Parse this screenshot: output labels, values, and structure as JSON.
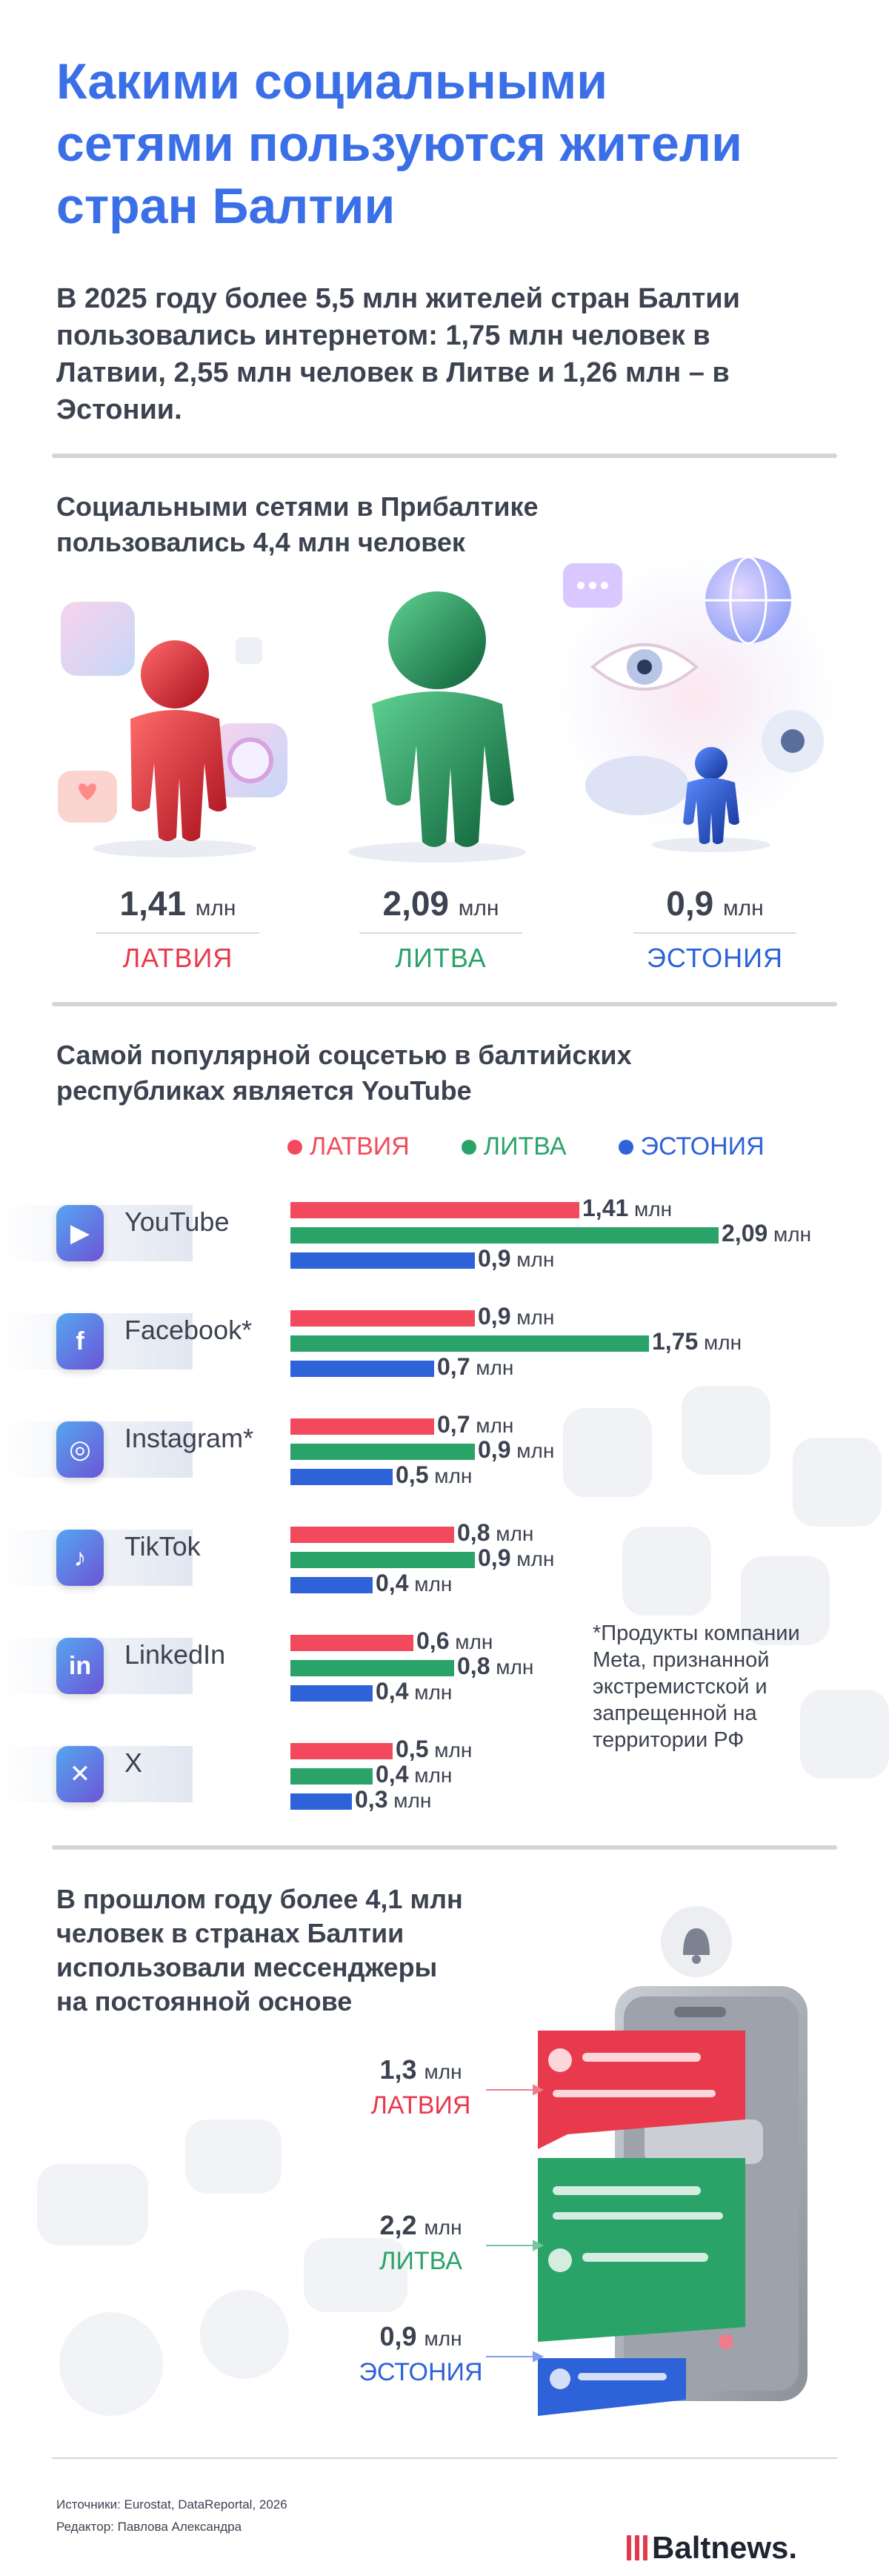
{
  "title": "Какими социальными сетями пользуются жители стран Балтии",
  "intro": "В 2025 году более 5,5 млн жителей стран Балтии пользовались интернетом: 1,75 млн человек в Латвии, 2,55 млн человек в Литве и 1,26 млн – в Эстонии.",
  "section_users": {
    "heading": "Социальными сетями в Прибалтике пользовались 4,4 млн человек",
    "unit": "млн",
    "countries": [
      {
        "value": "1,41",
        "name": "ЛАТВИЯ",
        "color": "#e83a4c"
      },
      {
        "value": "2,09",
        "name": "ЛИТВА",
        "color": "#2aa368"
      },
      {
        "value": "0,9",
        "name": "ЭСТОНИЯ",
        "color": "#2e62d9"
      }
    ]
  },
  "section_platforms": {
    "heading": "Самой популярной соцсетью в балтийских республиках является YouTube",
    "legend": [
      {
        "label": "ЛАТВИЯ",
        "color": "#f24a5c"
      },
      {
        "label": "ЛИТВА",
        "color": "#2aa368"
      },
      {
        "label": "ЭСТОНИЯ",
        "color": "#2e62d9"
      }
    ],
    "unit": "млн",
    "footnote": "*Продукты компании Meta, признанной экстремистской и запрещенной на территории РФ"
  },
  "chart_data": {
    "type": "bar",
    "orientation": "horizontal",
    "categories": [
      "YouTube",
      "Facebook*",
      "Instagram*",
      "TikTok",
      "LinkedIn",
      "X"
    ],
    "icons": [
      "youtube-icon",
      "facebook-icon",
      "instagram-icon",
      "tiktok-icon",
      "linkedin-icon",
      "x-icon"
    ],
    "series": [
      {
        "name": "ЛАТВИЯ",
        "color": "#f24a5c",
        "values": [
          1.41,
          0.9,
          0.7,
          0.8,
          0.6,
          0.5
        ],
        "labels": [
          "1,41",
          "0,9",
          "0,7",
          "0,8",
          "0,6",
          "0,5"
        ]
      },
      {
        "name": "ЛИТВА",
        "color": "#2aa368",
        "values": [
          2.09,
          1.75,
          0.9,
          0.9,
          0.8,
          0.4
        ],
        "labels": [
          "2,09",
          "1,75",
          "0,9",
          "0,9",
          "0,8",
          "0,4"
        ]
      },
      {
        "name": "ЭСТОНИЯ",
        "color": "#2e62d9",
        "values": [
          0.9,
          0.7,
          0.5,
          0.4,
          0.4,
          0.3
        ],
        "labels": [
          "0,9",
          "0,7",
          "0,5",
          "0,4",
          "0,4",
          "0,3"
        ]
      }
    ],
    "xlim": [
      0,
      2.09
    ]
  },
  "section_messengers": {
    "heading": "В прошлом году более 4,1 млн человек в странах Балтии использовали мессенджеры на постоянной основе",
    "unit": "млн",
    "countries": [
      {
        "value": "1,3",
        "name": "ЛАТВИЯ",
        "color": "#e83a4c"
      },
      {
        "value": "2,2",
        "name": "ЛИТВА",
        "color": "#2aa368"
      },
      {
        "value": "0,9",
        "name": "ЭСТОНИЯ",
        "color": "#2e62d9"
      }
    ]
  },
  "footer": {
    "sources": "Источники: Eurostat, DataReportal, 2026",
    "editor": "Редактор: Павлова Александра",
    "logo": "Baltnews."
  }
}
